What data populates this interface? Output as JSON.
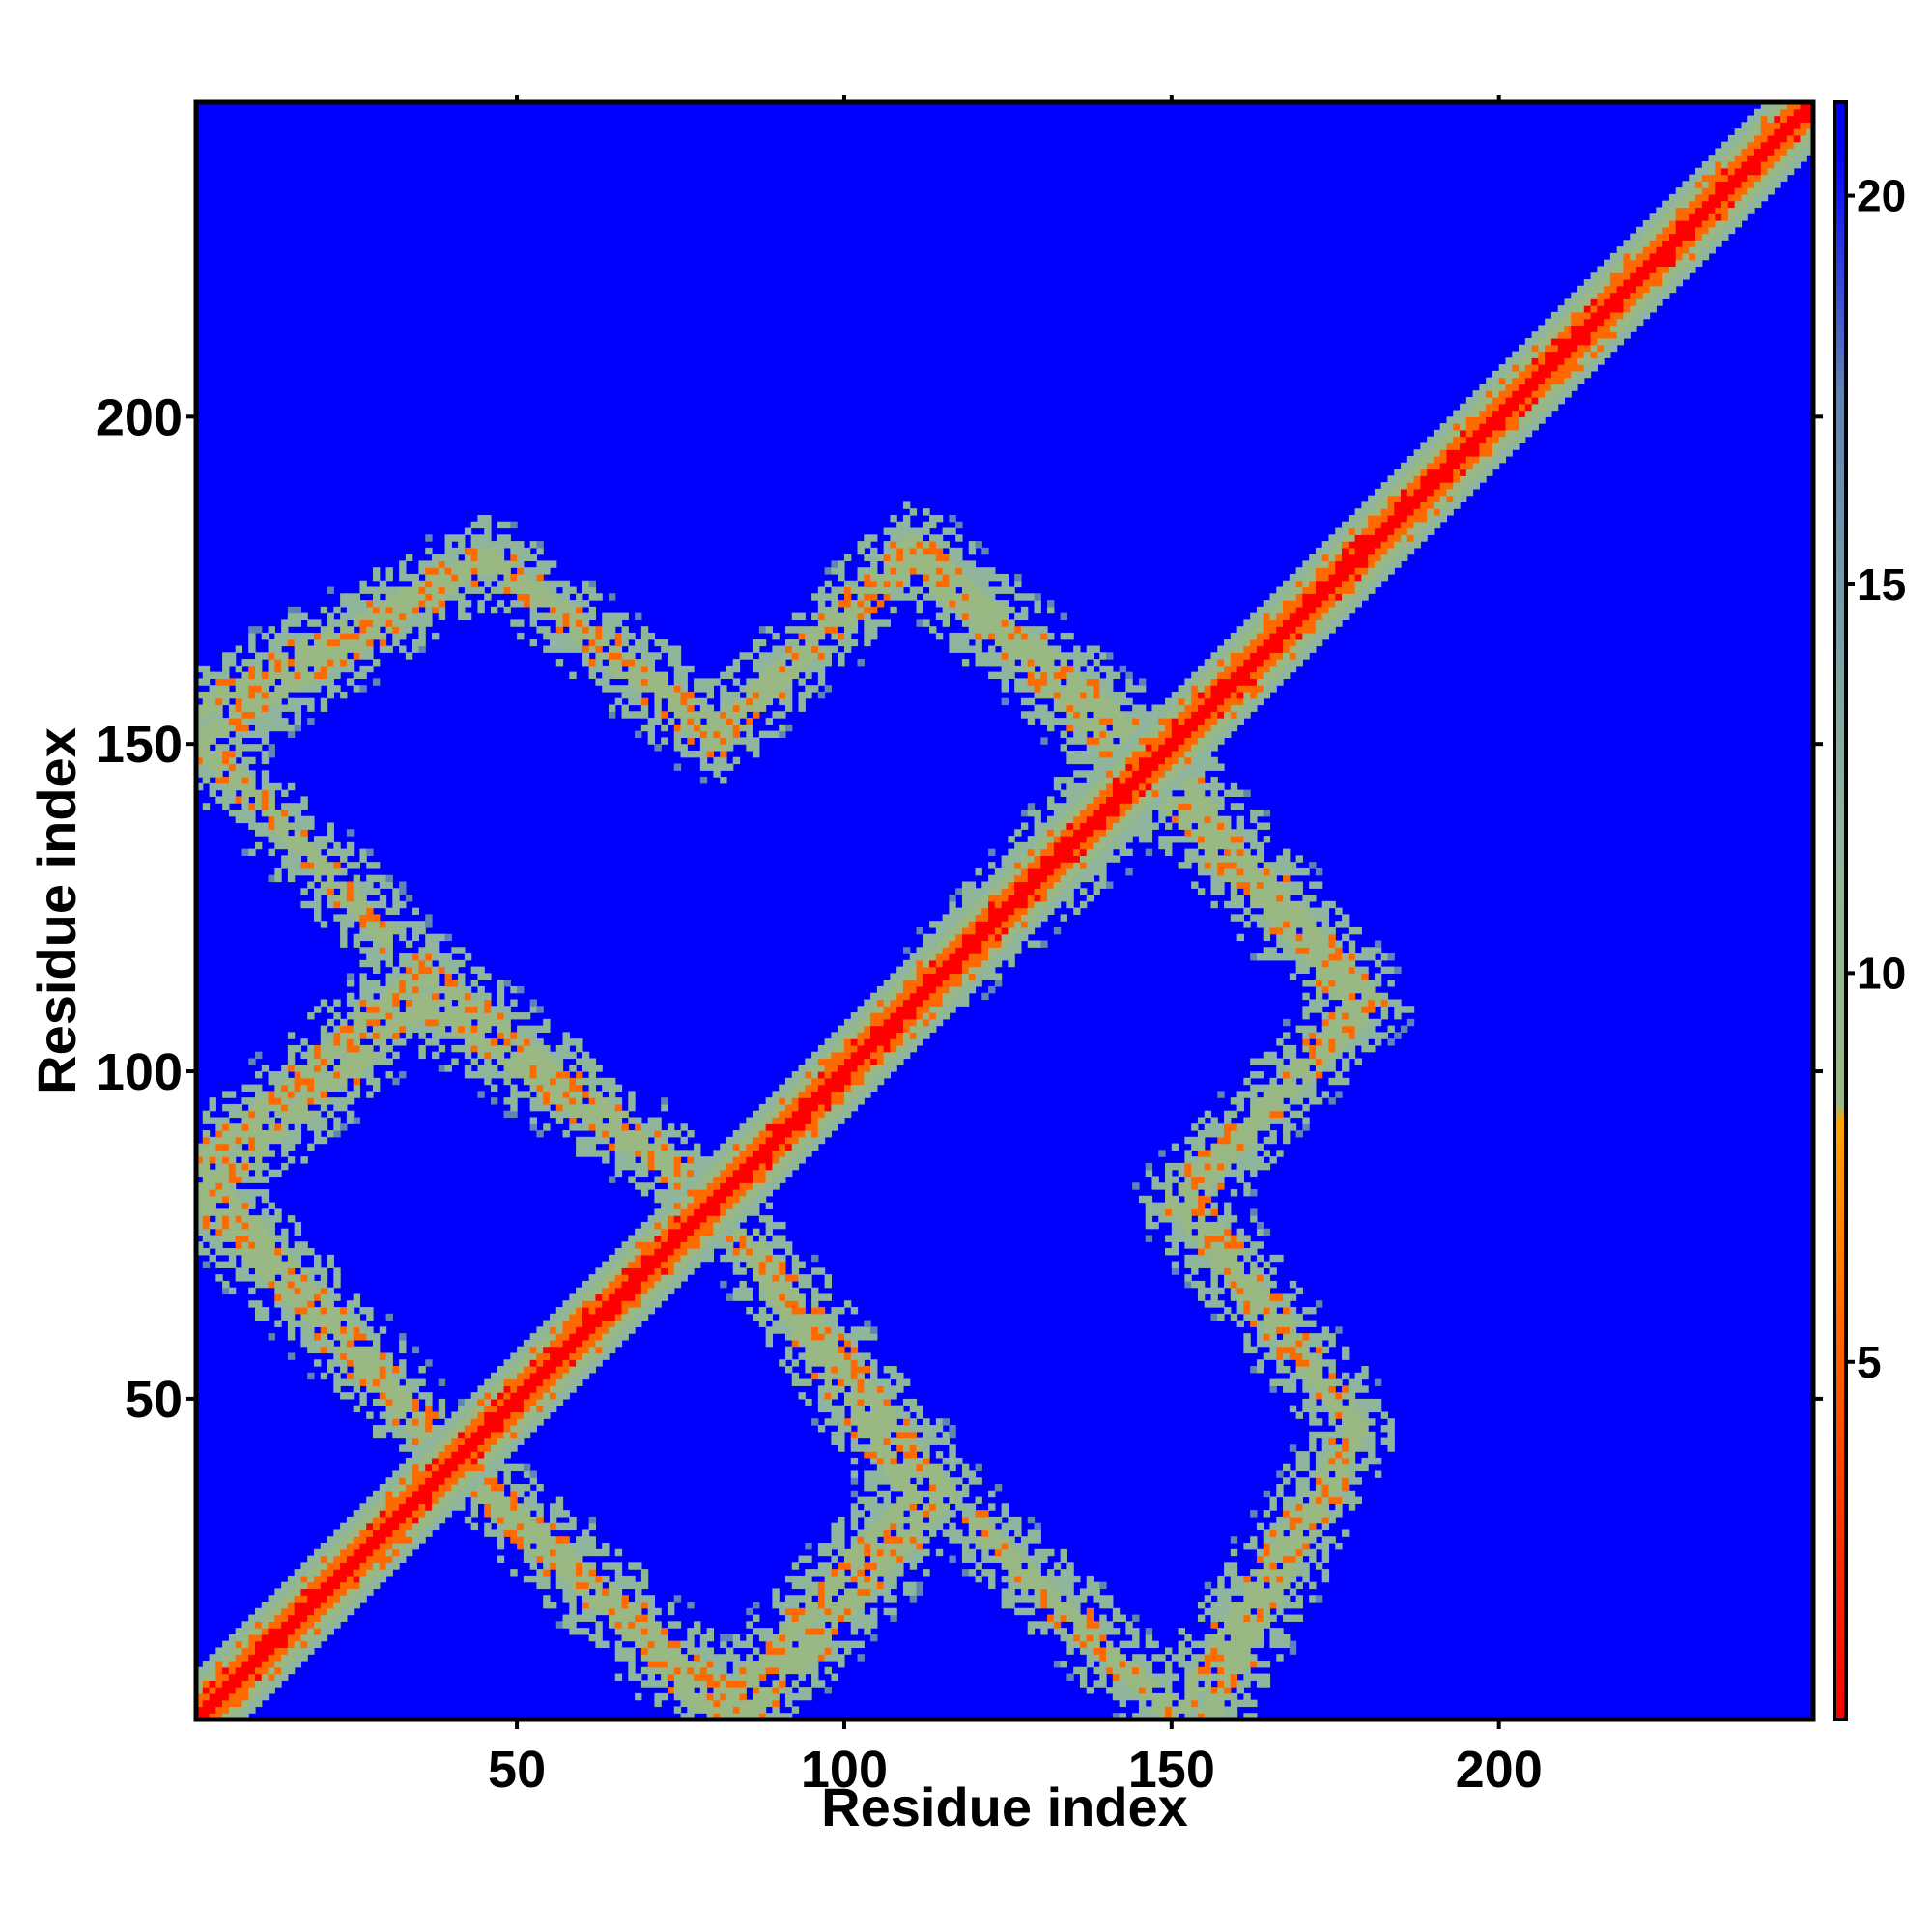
{
  "chart_data": {
    "type": "heatmap",
    "title": "",
    "xlabel": "Residue index",
    "ylabel": "Residue index",
    "xlim": [
      1,
      247
    ],
    "ylim": [
      1,
      247
    ],
    "x_ticks": [
      50,
      100,
      150,
      200
    ],
    "y_ticks": [
      50,
      100,
      150,
      200
    ],
    "x_tick_labels": [
      "50",
      "100",
      "150",
      "200"
    ],
    "y_tick_labels": [
      "50",
      "100",
      "150",
      "200"
    ],
    "grid": false,
    "value_cap": 21,
    "colorbar": {
      "placement": "right",
      "range": [
        0.4,
        21.2
      ],
      "ticks": [
        5,
        10,
        15,
        20
      ],
      "tick_labels": [
        "5",
        "10",
        "15",
        "20"
      ],
      "color_stops": [
        {
          "value": 0.4,
          "color": "#ff0000"
        },
        {
          "value": 5.5,
          "color": "#ff6a00"
        },
        {
          "value": 8.0,
          "color": "#ffa500"
        },
        {
          "value": 8.6,
          "color": "#9ab884"
        },
        {
          "value": 12.0,
          "color": "#8fb59c"
        },
        {
          "value": 17.5,
          "color": "#5f85b4"
        },
        {
          "value": 20.5,
          "color": "#0000ff"
        }
      ]
    },
    "description_of_pattern": {
      "diagonal_band": {
        "half_width_residues": 6
      },
      "contact_bands": [
        {
          "from": [
            1,
            155
          ],
          "to": [
            45,
            178
          ]
        },
        {
          "from": [
            45,
            178
          ],
          "to": [
            80,
            152
          ]
        },
        {
          "from": [
            1,
            85
          ],
          "to": [
            35,
            115
          ]
        },
        {
          "from": [
            35,
            115
          ],
          "to": [
            80,
            80
          ]
        },
        {
          "from": [
            1,
            85
          ],
          "to": [
            40,
            40
          ]
        },
        {
          "from": [
            40,
            40
          ],
          "to": [
            80,
            1
          ]
        },
        {
          "from": [
            80,
            80
          ],
          "to": [
            110,
            35
          ]
        },
        {
          "from": [
            110,
            35
          ],
          "to": [
            80,
            1
          ]
        },
        {
          "from": [
            80,
            152
          ],
          "to": [
            110,
            178
          ]
        },
        {
          "from": [
            110,
            178
          ],
          "to": [
            145,
            145
          ]
        },
        {
          "from": [
            115,
            115
          ],
          "to": [
            150,
            145
          ]
        },
        {
          "from": [
            150,
            145
          ],
          "to": [
            180,
            110
          ]
        },
        {
          "from": [
            180,
            110
          ],
          "to": [
            150,
            80
          ]
        },
        {
          "from": [
            150,
            80
          ],
          "to": [
            178,
            45
          ]
        },
        {
          "from": [
            178,
            45
          ],
          "to": [
            150,
            1
          ]
        },
        {
          "from": [
            150,
            1
          ],
          "to": [
            120,
            30
          ]
        }
      ]
    }
  }
}
